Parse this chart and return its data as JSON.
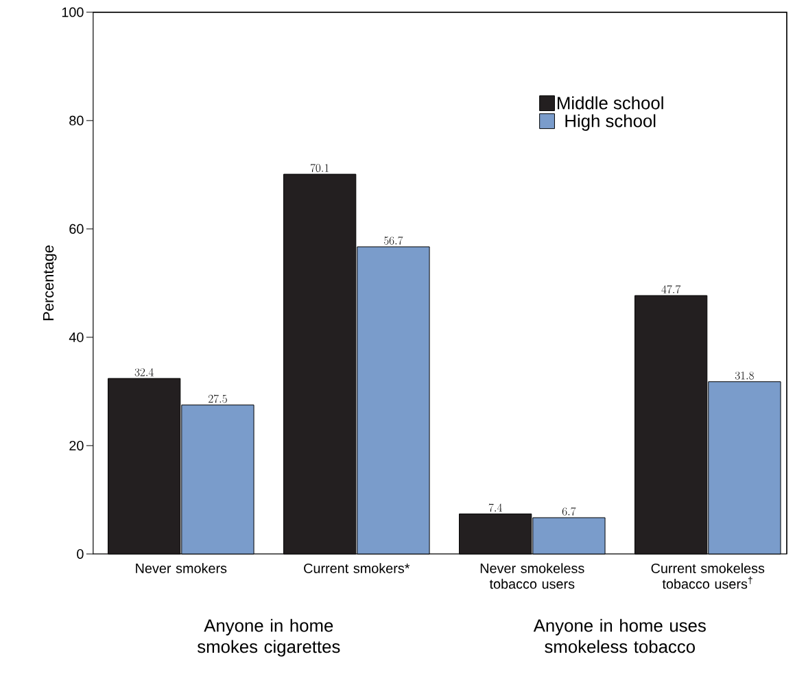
{
  "chart_data": {
    "type": "bar",
    "ylabel": "Percentage",
    "categories": [
      "Never smokers",
      "Current smokers*",
      "Never smokeless tobacco users",
      "Current smokeless tobacco users$^{†}$"
    ],
    "series": [
      {
        "name": "Middle school",
        "color": "#231f20",
        "values": [
          32.4,
          70.1,
          7.4,
          47.7
        ]
      },
      {
        "name": "High school",
        "color": "#7a9ccb",
        "values": [
          27.5,
          56.7,
          6.7,
          31.8
        ]
      }
    ],
    "ylim": [
      0,
      100
    ],
    "yticks": [
      0,
      20,
      40,
      60,
      80,
      100
    ],
    "data_labels": true,
    "legend": "top right",
    "grid": false,
    "annotations": [
      "Anyone in home smokes cigarettes",
      "Anyone in home uses smokeless tobacco"
    ]
  }
}
